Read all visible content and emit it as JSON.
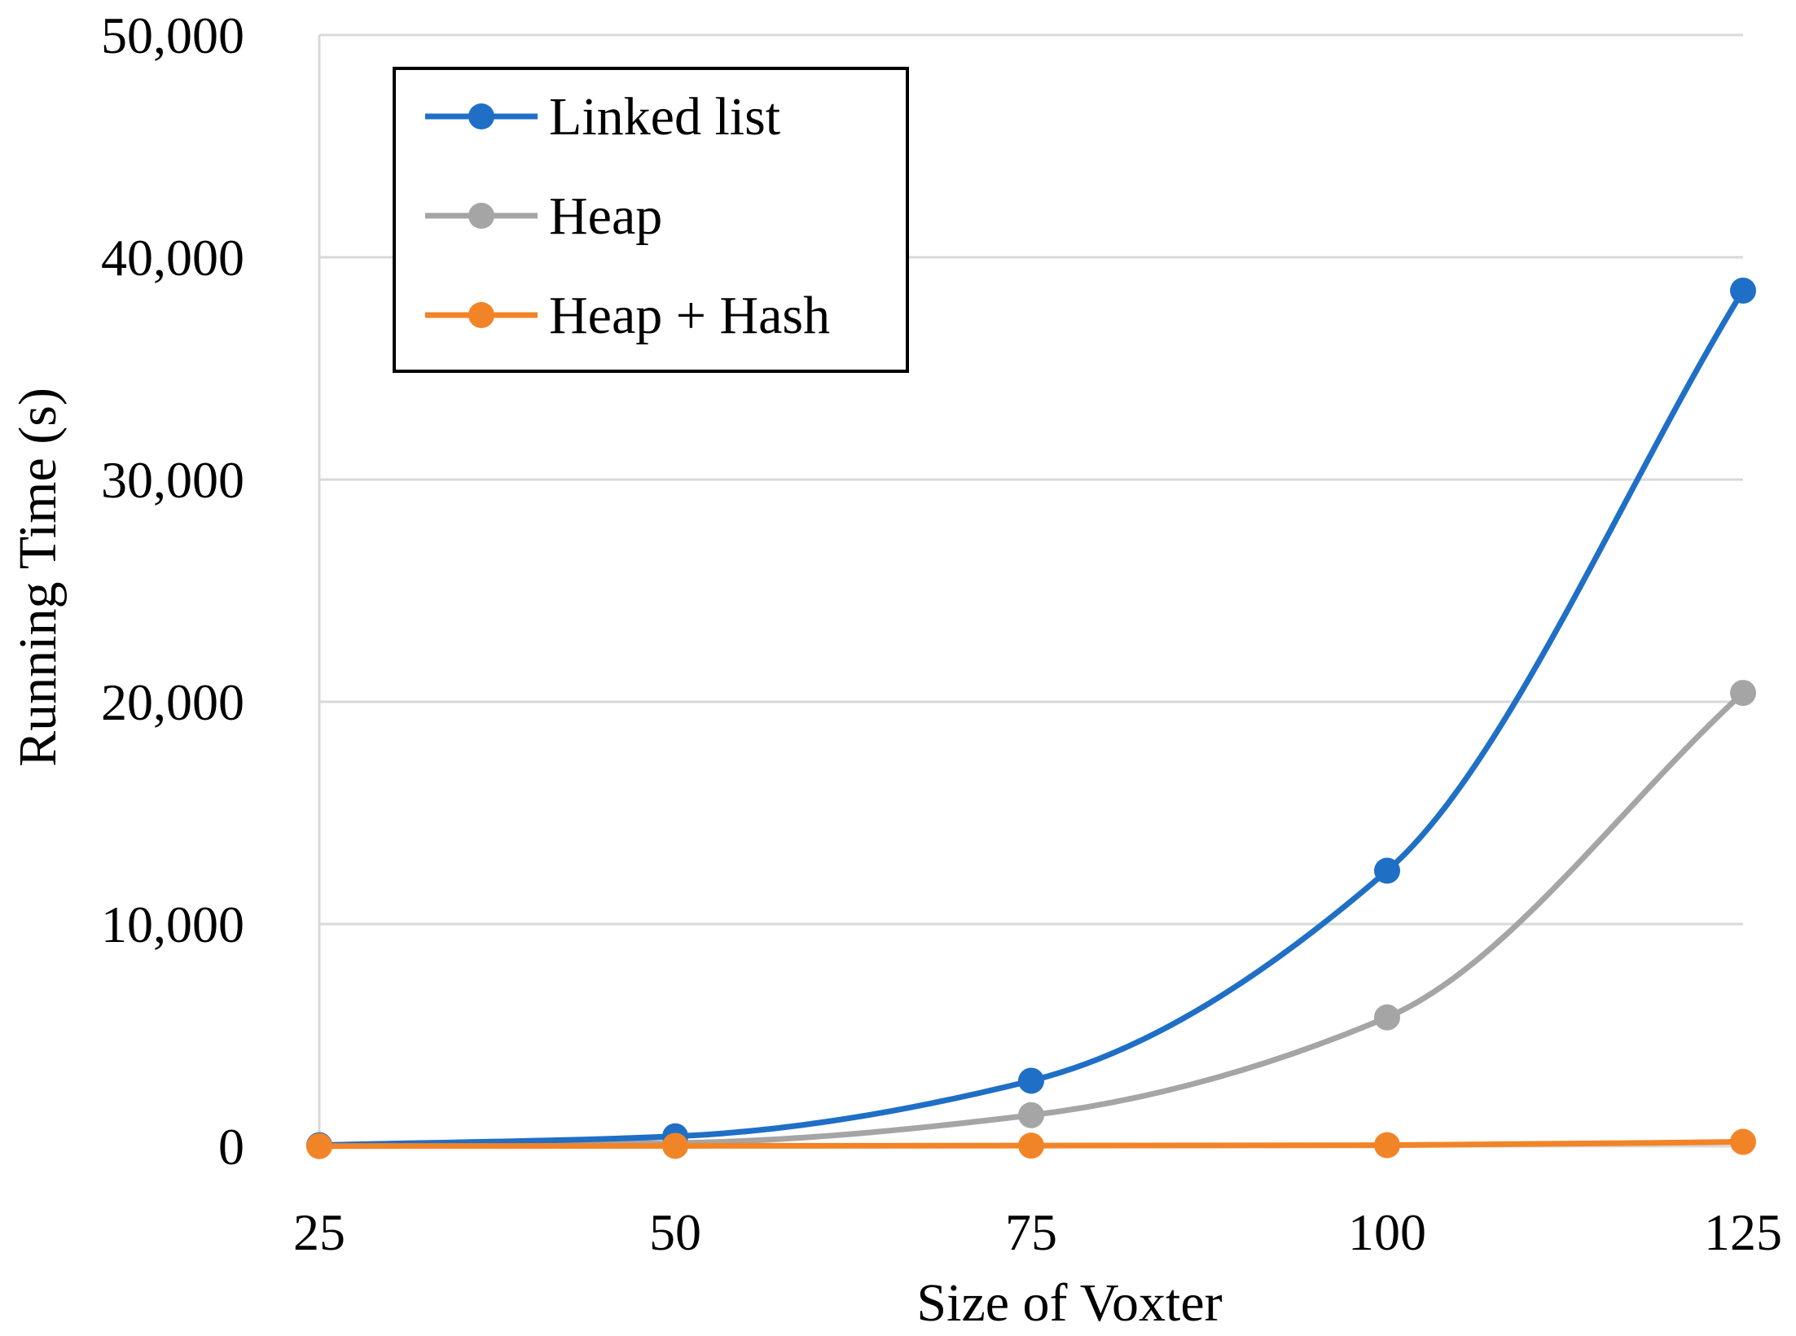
{
  "chart_data": {
    "type": "line",
    "title": "",
    "xlabel": "Size of Voxter",
    "ylabel": "Running Time (s)",
    "x": [
      25,
      50,
      75,
      100,
      125
    ],
    "xticks": [
      "25",
      "50",
      "75",
      "100",
      "125"
    ],
    "ylim": [
      0,
      50000
    ],
    "yticks": [
      0,
      10000,
      20000,
      30000,
      40000,
      50000
    ],
    "ytick_labels": [
      "0",
      "10,000",
      "20,000",
      "30,000",
      "40,000",
      "50,000"
    ],
    "grid": true,
    "smooth": true,
    "legend_position": "top-left",
    "series": [
      {
        "name": "Linked list",
        "color": "#1f6fc6",
        "values": [
          50,
          450,
          2950,
          12400,
          38500
        ]
      },
      {
        "name": "Heap",
        "color": "#a5a5a5",
        "values": [
          30,
          150,
          1400,
          5800,
          20400
        ]
      },
      {
        "name": "Heap + Hash",
        "color": "#f28428",
        "values": [
          10,
          20,
          30,
          50,
          200
        ]
      }
    ]
  }
}
